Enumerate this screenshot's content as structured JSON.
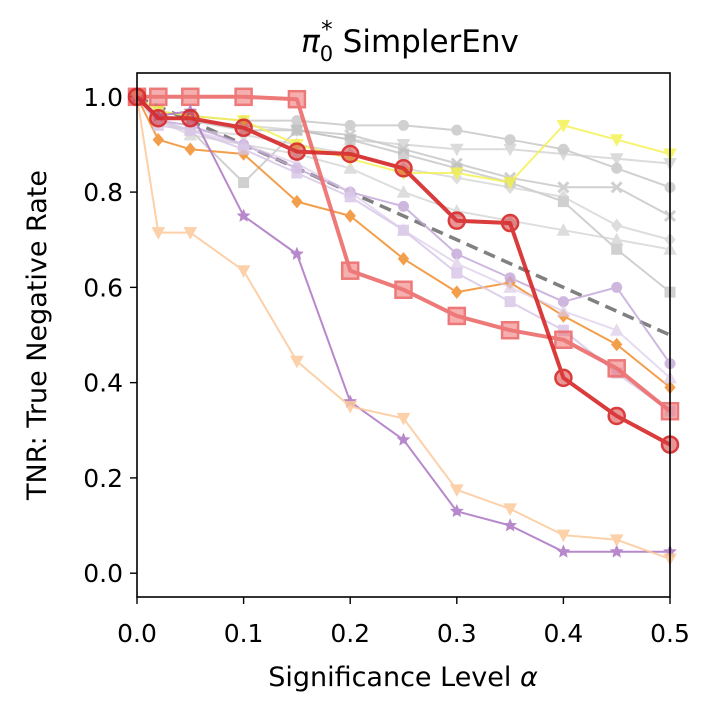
{
  "chart_data": {
    "type": "line",
    "title": "SimplerEnv",
    "title_symbol": "π",
    "title_sub": "0",
    "title_sup": "*",
    "xlabel": "Significance Level",
    "xlabel_symbol": "α",
    "ylabel": "TNR: True Negative Rate",
    "xlim": [
      0.0,
      0.5
    ],
    "ylim": [
      -0.05,
      1.05
    ],
    "xticks": [
      0.0,
      0.1,
      0.2,
      0.3,
      0.4,
      0.5
    ],
    "xtick_labels": [
      "0.0",
      "0.1",
      "0.2",
      "0.3",
      "0.4",
      "0.5"
    ],
    "yticks": [
      0.0,
      0.2,
      0.4,
      0.6,
      0.8,
      1.0
    ],
    "ytick_labels": [
      "0.0",
      "0.2",
      "0.4",
      "0.6",
      "0.8",
      "1.0"
    ],
    "reference_line": {
      "name": "diagonal",
      "x": [
        0.0,
        0.5
      ],
      "y": [
        1.0,
        0.5
      ],
      "color": "#808080",
      "style": "dashed"
    },
    "series": [
      {
        "name": "gray-circle-1",
        "color": "#bdbdbd",
        "marker": "circle",
        "opacity": 0.7,
        "x": [
          0.0,
          0.02,
          0.05,
          0.1,
          0.15,
          0.2,
          0.25,
          0.3,
          0.35,
          0.4,
          0.45,
          0.5
        ],
        "y": [
          1.0,
          0.97,
          0.96,
          0.95,
          0.95,
          0.94,
          0.94,
          0.93,
          0.91,
          0.89,
          0.85,
          0.81
        ]
      },
      {
        "name": "gray-x-1",
        "color": "#bdbdbd",
        "marker": "x",
        "opacity": 0.7,
        "x": [
          0.0,
          0.02,
          0.05,
          0.1,
          0.15,
          0.2,
          0.25,
          0.3,
          0.35,
          0.4,
          0.45,
          0.5
        ],
        "y": [
          1.0,
          0.96,
          0.95,
          0.93,
          0.93,
          0.92,
          0.89,
          0.86,
          0.83,
          0.81,
          0.81,
          0.75
        ]
      },
      {
        "name": "gray-triangle-down",
        "color": "#cccccc",
        "marker": "triangle-down",
        "opacity": 0.7,
        "x": [
          0.0,
          0.02,
          0.05,
          0.1,
          0.15,
          0.2,
          0.25,
          0.3,
          0.35,
          0.4,
          0.45,
          0.5
        ],
        "y": [
          1.0,
          0.96,
          0.95,
          0.94,
          0.93,
          0.91,
          0.9,
          0.89,
          0.89,
          0.88,
          0.87,
          0.86
        ]
      },
      {
        "name": "gray-square-1",
        "color": "#bdbdbd",
        "marker": "square",
        "opacity": 0.7,
        "x": [
          0.0,
          0.02,
          0.05,
          0.1,
          0.15,
          0.2,
          0.25,
          0.3,
          0.35,
          0.4,
          0.45,
          0.5
        ],
        "y": [
          1.0,
          0.95,
          0.93,
          0.82,
          0.93,
          0.91,
          0.88,
          0.85,
          0.82,
          0.78,
          0.68,
          0.59
        ]
      },
      {
        "name": "gray-diamond",
        "color": "#d0d0d0",
        "marker": "diamond",
        "opacity": 0.7,
        "x": [
          0.0,
          0.02,
          0.05,
          0.1,
          0.15,
          0.2,
          0.25,
          0.3,
          0.35,
          0.4,
          0.45,
          0.5
        ],
        "y": [
          1.0,
          0.95,
          0.93,
          0.92,
          0.9,
          0.88,
          0.85,
          0.83,
          0.81,
          0.79,
          0.73,
          0.7
        ]
      },
      {
        "name": "gray-triangle-up",
        "color": "#d0d0d0",
        "marker": "triangle-up",
        "opacity": 0.7,
        "x": [
          0.0,
          0.02,
          0.05,
          0.1,
          0.15,
          0.2,
          0.25,
          0.3,
          0.35,
          0.4,
          0.45,
          0.5
        ],
        "y": [
          1.0,
          0.95,
          0.92,
          0.9,
          0.88,
          0.85,
          0.8,
          0.76,
          0.74,
          0.72,
          0.7,
          0.68
        ]
      },
      {
        "name": "yellow-triangle-down",
        "color": "#f5f24a",
        "marker": "triangle-down",
        "opacity": 0.8,
        "x": [
          0.0,
          0.02,
          0.05,
          0.1,
          0.15,
          0.2,
          0.25,
          0.3,
          0.35,
          0.4,
          0.45,
          0.5
        ],
        "y": [
          1.0,
          0.97,
          0.96,
          0.95,
          0.9,
          0.87,
          0.84,
          0.84,
          0.82,
          0.94,
          0.91,
          0.88
        ]
      },
      {
        "name": "orange-diamond",
        "color": "#f28e2b",
        "marker": "diamond",
        "opacity": 0.85,
        "x": [
          0.0,
          0.02,
          0.05,
          0.1,
          0.15,
          0.2,
          0.25,
          0.3,
          0.35,
          0.4,
          0.45,
          0.5
        ],
        "y": [
          1.0,
          0.91,
          0.89,
          0.88,
          0.78,
          0.75,
          0.66,
          0.59,
          0.61,
          0.54,
          0.48,
          0.39
        ]
      },
      {
        "name": "lavender-circle",
        "color": "#c3a6d8",
        "marker": "circle",
        "opacity": 0.8,
        "x": [
          0.0,
          0.02,
          0.05,
          0.1,
          0.15,
          0.2,
          0.25,
          0.3,
          0.35,
          0.4,
          0.45,
          0.5
        ],
        "y": [
          1.0,
          0.95,
          0.94,
          0.9,
          0.85,
          0.8,
          0.77,
          0.67,
          0.62,
          0.57,
          0.6,
          0.44
        ]
      },
      {
        "name": "lavender-square",
        "color": "#d6c4e6",
        "marker": "square",
        "opacity": 0.8,
        "x": [
          0.0,
          0.02,
          0.05,
          0.1,
          0.15,
          0.2,
          0.25,
          0.3,
          0.35,
          0.4,
          0.45,
          0.5
        ],
        "y": [
          1.0,
          0.94,
          0.93,
          0.89,
          0.84,
          0.79,
          0.72,
          0.63,
          0.57,
          0.51,
          0.42,
          0.34
        ]
      },
      {
        "name": "lavender-triangle",
        "color": "#dccbea",
        "marker": "triangle-up",
        "opacity": 0.7,
        "x": [
          0.0,
          0.02,
          0.05,
          0.1,
          0.15,
          0.2,
          0.25,
          0.3,
          0.35,
          0.4,
          0.45,
          0.5
        ],
        "y": [
          1.0,
          0.95,
          0.93,
          0.9,
          0.86,
          0.8,
          0.72,
          0.65,
          0.6,
          0.55,
          0.51,
          0.41
        ]
      },
      {
        "name": "red-square",
        "color": "#ec6b6b",
        "marker": "square",
        "opacity": 0.9,
        "x": [
          0.0,
          0.02,
          0.05,
          0.1,
          0.15,
          0.2,
          0.25,
          0.3,
          0.35,
          0.4,
          0.45,
          0.5
        ],
        "y": [
          1.0,
          1.0,
          1.0,
          1.0,
          0.995,
          0.635,
          0.595,
          0.54,
          0.51,
          0.49,
          0.43,
          0.34
        ]
      },
      {
        "name": "purple-star",
        "color": "#b07cc6",
        "marker": "star",
        "opacity": 0.9,
        "x": [
          0.0,
          0.02,
          0.05,
          0.1,
          0.15,
          0.2,
          0.25,
          0.3,
          0.35,
          0.4,
          0.45,
          0.5
        ],
        "y": [
          1.0,
          0.96,
          0.97,
          0.75,
          0.67,
          0.36,
          0.28,
          0.13,
          0.1,
          0.045,
          0.045,
          0.045
        ]
      },
      {
        "name": "peach-triangle-down",
        "color": "#fcc89b",
        "marker": "triangle-down",
        "opacity": 0.85,
        "x": [
          0.0,
          0.02,
          0.05,
          0.1,
          0.15,
          0.2,
          0.25,
          0.3,
          0.35,
          0.4,
          0.45,
          0.5
        ],
        "y": [
          1.0,
          0.715,
          0.715,
          0.635,
          0.445,
          0.35,
          0.325,
          0.175,
          0.135,
          0.08,
          0.07,
          0.03
        ]
      },
      {
        "name": "red-circle",
        "color": "#d62728",
        "marker": "circle",
        "opacity": 0.9,
        "x": [
          0.0,
          0.02,
          0.05,
          0.1,
          0.15,
          0.2,
          0.25,
          0.3,
          0.35,
          0.4,
          0.45,
          0.5
        ],
        "y": [
          1.0,
          0.955,
          0.955,
          0.935,
          0.885,
          0.88,
          0.85,
          0.74,
          0.735,
          0.41,
          0.33,
          0.27
        ]
      }
    ]
  }
}
